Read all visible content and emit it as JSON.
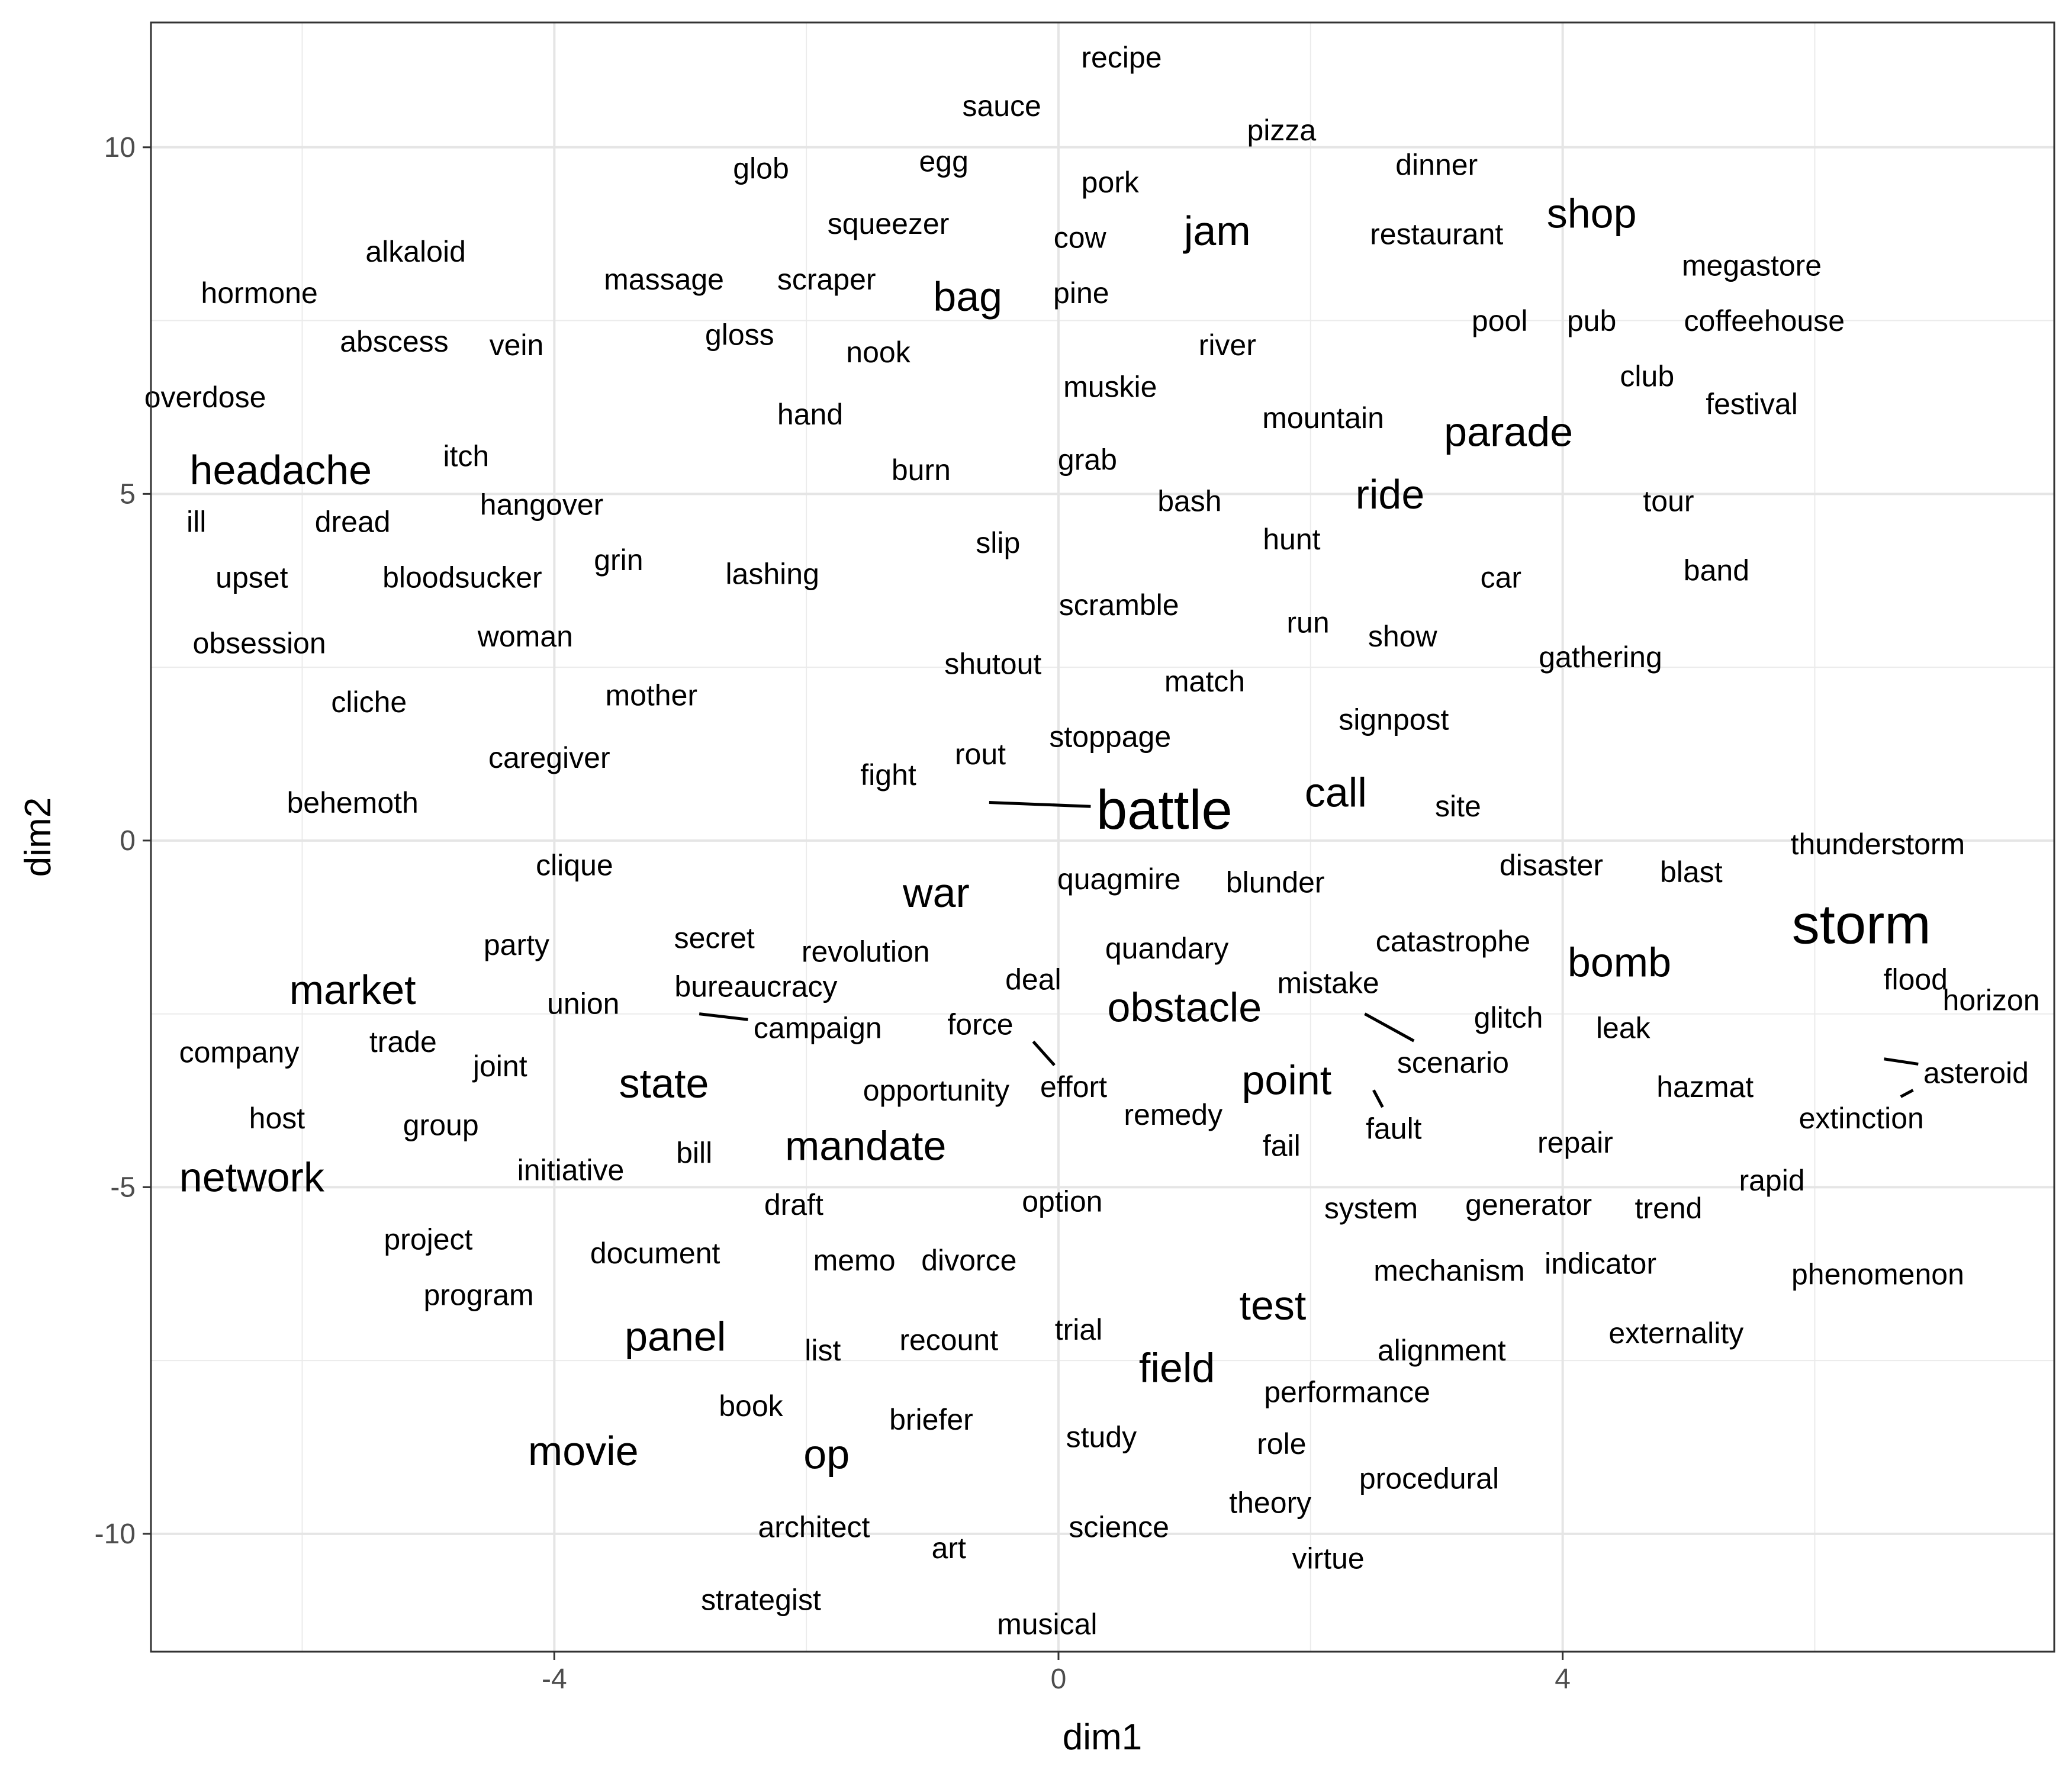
{
  "chart_data": {
    "type": "scatter",
    "subtype": "text-label scatter (word embedding)",
    "xlabel": "dim1",
    "ylabel": "dim2",
    "xlim": [
      -7.2,
      7.9
    ],
    "ylim": [
      -11.7,
      11.8
    ],
    "x_ticks": [
      -4,
      0,
      4
    ],
    "x_tick_labels": [
      "-4",
      "0",
      "4"
    ],
    "y_ticks": [
      -10,
      -5,
      0,
      5,
      10
    ],
    "y_tick_labels": [
      "-10",
      "-5",
      "0",
      "5",
      "10"
    ],
    "grid": true,
    "legend": "none",
    "theme": "bw",
    "points": [
      {
        "label": "recipe",
        "x": 0.5,
        "y": 11.3
      },
      {
        "label": "sauce",
        "x": -0.45,
        "y": 10.6
      },
      {
        "label": "pizza",
        "x": 1.77,
        "y": 10.25
      },
      {
        "label": "glob",
        "x": -2.36,
        "y": 9.7
      },
      {
        "label": "egg",
        "x": -0.91,
        "y": 9.8
      },
      {
        "label": "pork",
        "x": 0.41,
        "y": 9.5
      },
      {
        "label": "dinner",
        "x": 3.0,
        "y": 9.75
      },
      {
        "label": "squeezer",
        "x": -1.35,
        "y": 8.9
      },
      {
        "label": "cow",
        "x": 0.17,
        "y": 8.7
      },
      {
        "label": "jam",
        "x": 1.26,
        "y": 8.8,
        "size": "large"
      },
      {
        "label": "restaurant",
        "x": 3.0,
        "y": 8.75
      },
      {
        "label": "shop",
        "x": 4.23,
        "y": 9.05,
        "size": "large"
      },
      {
        "label": "alkaloid",
        "x": -5.1,
        "y": 8.5
      },
      {
        "label": "hormone",
        "x": -6.34,
        "y": 7.9
      },
      {
        "label": "massage",
        "x": -3.13,
        "y": 8.1
      },
      {
        "label": "scraper",
        "x": -1.84,
        "y": 8.1
      },
      {
        "label": "bag",
        "x": -0.72,
        "y": 7.85,
        "size": "large"
      },
      {
        "label": "pine",
        "x": 0.18,
        "y": 7.9
      },
      {
        "label": "megastore",
        "x": 5.5,
        "y": 8.3
      },
      {
        "label": "abscess",
        "x": -5.27,
        "y": 7.2
      },
      {
        "label": "vein",
        "x": -4.3,
        "y": 7.15
      },
      {
        "label": "gloss",
        "x": -2.53,
        "y": 7.3
      },
      {
        "label": "nook",
        "x": -1.43,
        "y": 7.05
      },
      {
        "label": "river",
        "x": 1.34,
        "y": 7.15
      },
      {
        "label": "pool",
        "x": 3.5,
        "y": 7.5
      },
      {
        "label": "pub",
        "x": 4.23,
        "y": 7.5
      },
      {
        "label": "coffeehouse",
        "x": 5.6,
        "y": 7.5
      },
      {
        "label": "club",
        "x": 4.67,
        "y": 6.7
      },
      {
        "label": "overdose",
        "x": -6.77,
        "y": 6.4
      },
      {
        "label": "muskie",
        "x": 0.41,
        "y": 6.55
      },
      {
        "label": "festival",
        "x": 5.5,
        "y": 6.3
      },
      {
        "label": "hand",
        "x": -1.97,
        "y": 6.15
      },
      {
        "label": "mountain",
        "x": 2.1,
        "y": 6.1
      },
      {
        "label": "parade",
        "x": 3.57,
        "y": 5.9,
        "size": "large"
      },
      {
        "label": "itch",
        "x": -4.7,
        "y": 5.55
      },
      {
        "label": "headache",
        "x": -6.17,
        "y": 5.35,
        "size": "large"
      },
      {
        "label": "grab",
        "x": 0.23,
        "y": 5.5
      },
      {
        "label": "burn",
        "x": -1.09,
        "y": 5.35
      },
      {
        "label": "ride",
        "x": 2.63,
        "y": 5.0,
        "size": "large"
      },
      {
        "label": "bash",
        "x": 1.04,
        "y": 4.9
      },
      {
        "label": "tour",
        "x": 4.84,
        "y": 4.9
      },
      {
        "label": "hangover",
        "x": -4.1,
        "y": 4.85
      },
      {
        "label": "ill",
        "x": -6.84,
        "y": 4.6
      },
      {
        "label": "dread",
        "x": -5.6,
        "y": 4.6
      },
      {
        "label": "slip",
        "x": -0.48,
        "y": 4.3
      },
      {
        "label": "hunt",
        "x": 1.85,
        "y": 4.35
      },
      {
        "label": "upset",
        "x": -6.4,
        "y": 3.8
      },
      {
        "label": "bloodsucker",
        "x": -4.73,
        "y": 3.8
      },
      {
        "label": "grin",
        "x": -3.49,
        "y": 4.05
      },
      {
        "label": "lashing",
        "x": -2.27,
        "y": 3.85
      },
      {
        "label": "car",
        "x": 3.51,
        "y": 3.8
      },
      {
        "label": "band",
        "x": 5.22,
        "y": 3.9
      },
      {
        "label": "scramble",
        "x": 0.48,
        "y": 3.4
      },
      {
        "label": "run",
        "x": 1.98,
        "y": 3.15
      },
      {
        "label": "show",
        "x": 2.73,
        "y": 2.95
      },
      {
        "label": "obsession",
        "x": -6.34,
        "y": 2.85
      },
      {
        "label": "woman",
        "x": -4.23,
        "y": 2.95
      },
      {
        "label": "gathering",
        "x": 4.3,
        "y": 2.65
      },
      {
        "label": "shutout",
        "x": -0.52,
        "y": 2.55
      },
      {
        "label": "match",
        "x": 1.16,
        "y": 2.3
      },
      {
        "label": "cliche",
        "x": -5.47,
        "y": 2.0
      },
      {
        "label": "mother",
        "x": -3.23,
        "y": 2.1
      },
      {
        "label": "signpost",
        "x": 2.66,
        "y": 1.75
      },
      {
        "label": "caregiver",
        "x": -4.04,
        "y": 1.2
      },
      {
        "label": "stoppage",
        "x": 0.41,
        "y": 1.5
      },
      {
        "label": "rout",
        "x": -0.62,
        "y": 1.25
      },
      {
        "label": "fight",
        "x": -1.35,
        "y": 0.95
      },
      {
        "label": "battle",
        "x": 0.84,
        "y": 0.45,
        "size": "xlarge",
        "leader_to": {
          "x": -0.55,
          "y": 0.55
        }
      },
      {
        "label": "call",
        "x": 2.2,
        "y": 0.7,
        "size": "large"
      },
      {
        "label": "site",
        "x": 3.17,
        "y": 0.5
      },
      {
        "label": "behemoth",
        "x": -5.6,
        "y": 0.55
      },
      {
        "label": "thunderstorm",
        "x": 6.5,
        "y": -0.05
      },
      {
        "label": "clique",
        "x": -3.84,
        "y": -0.35
      },
      {
        "label": "disaster",
        "x": 3.91,
        "y": -0.35
      },
      {
        "label": "blast",
        "x": 5.02,
        "y": -0.45
      },
      {
        "label": "quagmire",
        "x": 0.48,
        "y": -0.55
      },
      {
        "label": "blunder",
        "x": 1.72,
        "y": -0.6
      },
      {
        "label": "war",
        "x": -0.97,
        "y": -0.75,
        "size": "large"
      },
      {
        "label": "storm",
        "x": 6.37,
        "y": -1.2,
        "size": "xlarge"
      },
      {
        "label": "secret",
        "x": -2.73,
        "y": -1.4
      },
      {
        "label": "party",
        "x": -4.3,
        "y": -1.5
      },
      {
        "label": "revolution",
        "x": -1.53,
        "y": -1.6
      },
      {
        "label": "quandary",
        "x": 0.86,
        "y": -1.55
      },
      {
        "label": "catastrophe",
        "x": 3.13,
        "y": -1.45
      },
      {
        "label": "bomb",
        "x": 4.45,
        "y": -1.75,
        "size": "large"
      },
      {
        "label": "market",
        "x": -5.6,
        "y": -2.15,
        "size": "large"
      },
      {
        "label": "bureaucracy",
        "x": -2.4,
        "y": -2.1
      },
      {
        "label": "deal",
        "x": -0.2,
        "y": -2.0
      },
      {
        "label": "mistake",
        "x": 2.14,
        "y": -2.05
      },
      {
        "label": "flood",
        "x": 6.8,
        "y": -2.0
      },
      {
        "label": "union",
        "x": -3.77,
        "y": -2.35
      },
      {
        "label": "obstacle",
        "x": 1.0,
        "y": -2.4,
        "size": "large"
      },
      {
        "label": "horizon",
        "x": 7.4,
        "y": -2.3
      },
      {
        "label": "glitch",
        "x": 3.57,
        "y": -2.55
      },
      {
        "label": "force",
        "x": -0.62,
        "y": -2.65
      },
      {
        "label": "campaign",
        "x": -1.91,
        "y": -2.7,
        "leader_to": {
          "x": -2.85,
          "y": -2.5
        }
      },
      {
        "label": "leak",
        "x": 4.48,
        "y": -2.7
      },
      {
        "label": "company",
        "x": -6.5,
        "y": -3.05
      },
      {
        "label": "trade",
        "x": -5.2,
        "y": -2.9
      },
      {
        "label": "joint",
        "x": -4.43,
        "y": -3.25
      },
      {
        "label": "scenario",
        "x": 3.13,
        "y": -3.2,
        "leader_to": {
          "x": 2.43,
          "y": -2.5
        }
      },
      {
        "label": "asteroid",
        "x": 7.28,
        "y": -3.35,
        "leader_to": {
          "x": 6.55,
          "y": -3.15
        }
      },
      {
        "label": "state",
        "x": -3.13,
        "y": -3.5,
        "size": "large"
      },
      {
        "label": "opportunity",
        "x": -0.97,
        "y": -3.6
      },
      {
        "label": "effort",
        "x": 0.12,
        "y": -3.55,
        "leader_to": {
          "x": -0.2,
          "y": -2.9
        }
      },
      {
        "label": "point",
        "x": 1.81,
        "y": -3.45,
        "size": "large"
      },
      {
        "label": "hazmat",
        "x": 5.13,
        "y": -3.55
      },
      {
        "label": "extinction",
        "x": 6.37,
        "y": -4.0,
        "leader_to": {
          "x": 6.78,
          "y": -3.6
        }
      },
      {
        "label": "host",
        "x": -6.2,
        "y": -4.0
      },
      {
        "label": "group",
        "x": -4.9,
        "y": -4.1
      },
      {
        "label": "remedy",
        "x": 0.91,
        "y": -3.95
      },
      {
        "label": "fault",
        "x": 2.66,
        "y": -4.15,
        "leader_to": {
          "x": 2.5,
          "y": -3.6
        }
      },
      {
        "label": "bill",
        "x": -2.89,
        "y": -4.5
      },
      {
        "label": "mandate",
        "x": -1.53,
        "y": -4.4,
        "size": "large"
      },
      {
        "label": "fail",
        "x": 1.77,
        "y": -4.4
      },
      {
        "label": "repair",
        "x": 4.1,
        "y": -4.35
      },
      {
        "label": "initiative",
        "x": -3.87,
        "y": -4.75
      },
      {
        "label": "network",
        "x": -6.4,
        "y": -4.85,
        "size": "large"
      },
      {
        "label": "rapid",
        "x": 5.66,
        "y": -4.9
      },
      {
        "label": "draft",
        "x": -2.1,
        "y": -5.25
      },
      {
        "label": "option",
        "x": 0.03,
        "y": -5.2
      },
      {
        "label": "system",
        "x": 2.48,
        "y": -5.3
      },
      {
        "label": "generator",
        "x": 3.73,
        "y": -5.25
      },
      {
        "label": "trend",
        "x": 4.84,
        "y": -5.3
      },
      {
        "label": "project",
        "x": -5.0,
        "y": -5.75
      },
      {
        "label": "document",
        "x": -3.2,
        "y": -5.95
      },
      {
        "label": "memo",
        "x": -1.62,
        "y": -6.05
      },
      {
        "label": "divorce",
        "x": -0.71,
        "y": -6.05
      },
      {
        "label": "mechanism",
        "x": 3.1,
        "y": -6.2
      },
      {
        "label": "indicator",
        "x": 4.3,
        "y": -6.1
      },
      {
        "label": "phenomenon",
        "x": 6.5,
        "y": -6.25
      },
      {
        "label": "program",
        "x": -4.6,
        "y": -6.55
      },
      {
        "label": "test",
        "x": 1.7,
        "y": -6.7,
        "size": "large"
      },
      {
        "label": "panel",
        "x": -3.04,
        "y": -7.15,
        "size": "large"
      },
      {
        "label": "trial",
        "x": 0.16,
        "y": -7.05
      },
      {
        "label": "recount",
        "x": -0.87,
        "y": -7.2
      },
      {
        "label": "externality",
        "x": 4.9,
        "y": -7.1
      },
      {
        "label": "list",
        "x": -1.87,
        "y": -7.35
      },
      {
        "label": "alignment",
        "x": 3.04,
        "y": -7.35
      },
      {
        "label": "field",
        "x": 0.94,
        "y": -7.6,
        "size": "large"
      },
      {
        "label": "performance",
        "x": 2.29,
        "y": -7.95
      },
      {
        "label": "book",
        "x": -2.44,
        "y": -8.15
      },
      {
        "label": "briefer",
        "x": -1.01,
        "y": -8.35
      },
      {
        "label": "study",
        "x": 0.34,
        "y": -8.6
      },
      {
        "label": "role",
        "x": 1.77,
        "y": -8.7
      },
      {
        "label": "movie",
        "x": -3.77,
        "y": -8.8,
        "size": "large"
      },
      {
        "label": "op",
        "x": -1.84,
        "y": -8.85,
        "size": "large"
      },
      {
        "label": "procedural",
        "x": 2.94,
        "y": -9.2
      },
      {
        "label": "theory",
        "x": 1.68,
        "y": -9.55
      },
      {
        "label": "architect",
        "x": -1.94,
        "y": -9.9
      },
      {
        "label": "science",
        "x": 0.48,
        "y": -9.9
      },
      {
        "label": "art",
        "x": -0.87,
        "y": -10.2
      },
      {
        "label": "virtue",
        "x": 2.14,
        "y": -10.35
      },
      {
        "label": "strategist",
        "x": -2.36,
        "y": -10.95
      },
      {
        "label": "musical",
        "x": -0.09,
        "y": -11.3
      }
    ]
  }
}
